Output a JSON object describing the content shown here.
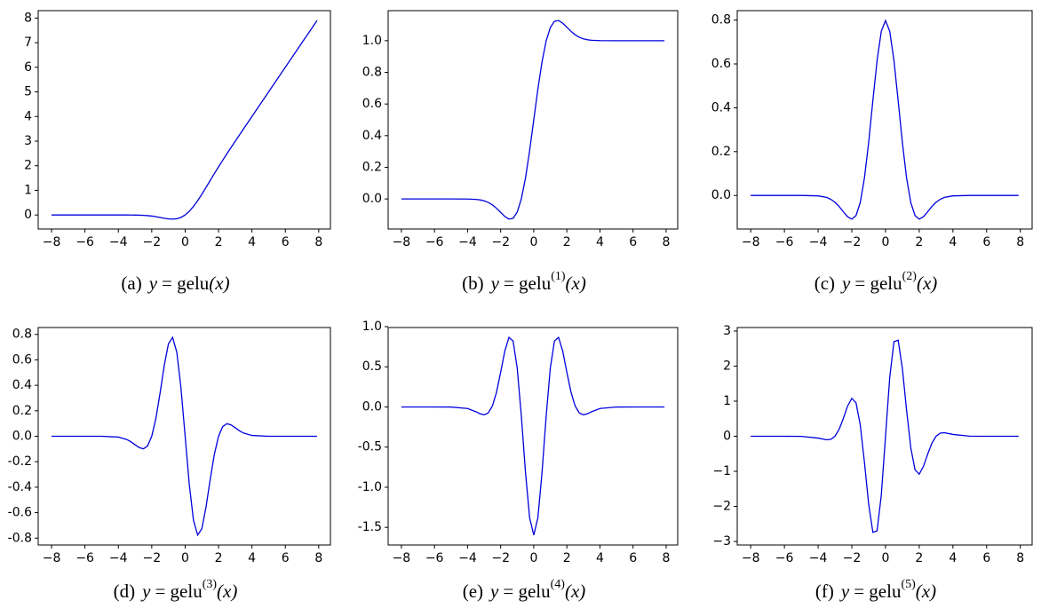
{
  "chart_data": [
    {
      "type": "line",
      "color": "#0000dd",
      "caption": {
        "label": "(a)",
        "var": "y",
        "eq": "= gelu",
        "arg": "(x)"
      },
      "x": [
        -8,
        -7,
        -6,
        -5,
        -4,
        -3.5,
        -3.25,
        -3,
        -2.75,
        -2.5,
        -2.25,
        -2,
        -1.75,
        -1.5,
        -1.25,
        -1,
        -0.75,
        -0.5,
        -0.25,
        0,
        0.25,
        0.5,
        0.75,
        1,
        1.25,
        1.5,
        1.75,
        2,
        2.25,
        2.5,
        2.75,
        3,
        3.25,
        3.5,
        4,
        5,
        6,
        7,
        7.9
      ],
      "values": [
        0,
        0,
        0,
        0,
        -0.0001,
        -0.0008,
        -0.0019,
        -0.0041,
        -0.0082,
        -0.0155,
        -0.0275,
        -0.0455,
        -0.0701,
        -0.1002,
        -0.1321,
        -0.1587,
        -0.17,
        -0.1543,
        -0.1003,
        0,
        0.1497,
        0.3457,
        0.58,
        0.8413,
        1.1179,
        1.3998,
        1.6799,
        1.9545,
        2.2225,
        2.4845,
        2.7418,
        2.996,
        3.2481,
        3.4992,
        3.9999,
        5,
        6,
        7,
        7.9
      ],
      "xlim": [
        -8.8,
        8.7
      ],
      "ylim": [
        -0.57,
        8.3
      ],
      "xticks": [
        {
          "value": -8,
          "label": "−8"
        },
        {
          "value": -6,
          "label": "−6"
        },
        {
          "value": -4,
          "label": "−4"
        },
        {
          "value": -2,
          "label": "−2"
        },
        0,
        2,
        4,
        6,
        8
      ],
      "yticks": [
        0,
        1,
        2,
        3,
        4,
        5,
        6,
        7,
        8
      ]
    },
    {
      "type": "line",
      "color": "#0000dd",
      "caption": {
        "label": "(b)",
        "var": "y",
        "eq": "= gelu",
        "sup": "(1)",
        "arg": "(x)"
      },
      "x": [
        -8,
        -7,
        -6,
        -5,
        -4,
        -3.5,
        -3.25,
        -3,
        -2.75,
        -2.5,
        -2.25,
        -2,
        -1.75,
        -1.5,
        -1.25,
        -1,
        -0.75,
        -0.5,
        -0.25,
        0,
        0.25,
        0.5,
        0.75,
        1,
        1.25,
        1.5,
        1.75,
        2,
        2.25,
        2.5,
        2.75,
        3,
        3.25,
        3.5,
        4,
        5,
        6,
        7,
        7.9
      ],
      "values": [
        0,
        0,
        0,
        0,
        -0.0005,
        -0.0028,
        -0.006,
        -0.0119,
        -0.022,
        -0.0376,
        -0.0592,
        -0.0852,
        -0.1109,
        -0.1275,
        -0.1227,
        -0.0833,
        0.0008,
        0.1325,
        0.3046,
        0.5,
        0.6954,
        0.8675,
        0.9992,
        1.0833,
        1.1227,
        1.1275,
        1.1109,
        1.0852,
        1.0592,
        1.0376,
        1.022,
        1.0119,
        1.006,
        1.0028,
        1.0005,
        1,
        1,
        1,
        1
      ],
      "xlim": [
        -8.8,
        8.7
      ],
      "ylim": [
        -0.19,
        1.19
      ],
      "xticks": [
        {
          "value": -8,
          "label": "−8"
        },
        {
          "value": -6,
          "label": "−6"
        },
        {
          "value": -4,
          "label": "−4"
        },
        {
          "value": -2,
          "label": "−2"
        },
        0,
        2,
        4,
        6,
        8
      ],
      "yticks": [
        {
          "value": 0,
          "label": "0.0"
        },
        0.2,
        0.4,
        0.6,
        0.8,
        {
          "value": 1,
          "label": "1.0"
        }
      ]
    },
    {
      "type": "line",
      "color": "#0000dd",
      "caption": {
        "label": "(c)",
        "var": "y",
        "eq": "= gelu",
        "sup": "(2)",
        "arg": "(x)"
      },
      "x": [
        -8,
        -7,
        -6,
        -5,
        -4,
        -3.5,
        -3.25,
        -3,
        -2.75,
        -2.5,
        -2.25,
        -2,
        -1.75,
        -1.5,
        -1.25,
        -1,
        -0.75,
        -0.5,
        -0.25,
        0,
        0.25,
        0.5,
        0.75,
        1,
        1.25,
        1.5,
        1.75,
        2,
        2.25,
        2.5,
        2.75,
        3,
        3.25,
        3.5,
        4,
        5,
        6,
        7,
        7.9
      ],
      "values": [
        0,
        0,
        0,
        0,
        -0.0019,
        -0.0089,
        -0.0174,
        -0.031,
        -0.0506,
        -0.0745,
        -0.0972,
        -0.108,
        -0.0917,
        -0.0324,
        0.0799,
        0.242,
        0.4329,
        0.6161,
        0.7492,
        0.7979,
        0.7492,
        0.6161,
        0.4329,
        0.242,
        0.0799,
        -0.0324,
        -0.0917,
        -0.108,
        -0.0972,
        -0.0745,
        -0.0506,
        -0.031,
        -0.0174,
        -0.0089,
        -0.0019,
        0,
        0,
        0,
        0
      ],
      "xlim": [
        -8.8,
        8.7
      ],
      "ylim": [
        -0.153,
        0.843
      ],
      "xticks": [
        {
          "value": -8,
          "label": "−8"
        },
        {
          "value": -6,
          "label": "−6"
        },
        {
          "value": -4,
          "label": "−4"
        },
        {
          "value": -2,
          "label": "−2"
        },
        0,
        2,
        4,
        6,
        8
      ],
      "yticks": [
        {
          "value": 0,
          "label": "0.0"
        },
        0.2,
        0.4,
        0.6,
        0.8
      ]
    },
    {
      "type": "line",
      "color": "#0000dd",
      "caption": {
        "label": "(d)",
        "var": "y",
        "eq": "= gelu",
        "sup": "(3)",
        "arg": "(x)"
      },
      "x": [
        -8,
        -7,
        -6,
        -5,
        -4,
        -3.5,
        -3.25,
        -3,
        -2.75,
        -2.5,
        -2.25,
        -2,
        -1.75,
        -1.5,
        -1.25,
        -1,
        -0.75,
        -0.5,
        -0.25,
        0,
        0.25,
        0.5,
        0.75,
        1,
        1.25,
        1.5,
        1.75,
        2,
        2.25,
        2.5,
        2.75,
        3,
        3.25,
        3.5,
        4,
        5,
        6,
        7,
        7.9
      ],
      "values": [
        0,
        0,
        0,
        0,
        -0.0064,
        -0.0251,
        -0.0433,
        -0.0665,
        -0.0891,
        -0.0986,
        -0.0759,
        0,
        0.1416,
        0.34,
        0.5565,
        0.7259,
        0.7764,
        0.6601,
        0.3806,
        0,
        -0.3806,
        -0.6601,
        -0.7764,
        -0.7259,
        -0.5565,
        -0.34,
        -0.1416,
        0,
        0.0759,
        0.0986,
        0.0891,
        0.0665,
        0.0433,
        0.0251,
        0.0064,
        0,
        0,
        0,
        0
      ],
      "xlim": [
        -8.8,
        8.7
      ],
      "ylim": [
        -0.854,
        0.854
      ],
      "xticks": [
        {
          "value": -8,
          "label": "−8"
        },
        {
          "value": -6,
          "label": "−6"
        },
        {
          "value": -4,
          "label": "−4"
        },
        {
          "value": -2,
          "label": "−2"
        },
        0,
        2,
        4,
        6,
        8
      ],
      "yticks": [
        -0.8,
        -0.6,
        -0.4,
        -0.2,
        {
          "value": 0,
          "label": "0.0"
        },
        0.2,
        0.4,
        0.6,
        0.8
      ]
    },
    {
      "type": "line",
      "color": "#0000dd",
      "caption": {
        "label": "(e)",
        "var": "y",
        "eq": "= gelu",
        "sup": "(4)",
        "arg": "(x)"
      },
      "x": [
        -8,
        -7,
        -6,
        -5,
        -4,
        -3.5,
        -3.25,
        -3,
        -2.75,
        -2.5,
        -2.25,
        -2,
        -1.75,
        -1.5,
        -1.25,
        -1,
        -0.75,
        -0.5,
        -0.25,
        0,
        0.25,
        0.5,
        0.75,
        1,
        1.25,
        1.5,
        1.75,
        2,
        2.25,
        2.5,
        2.75,
        3,
        3.25,
        3.5,
        4,
        5,
        6,
        7,
        7.9
      ],
      "values": [
        0,
        0,
        0,
        -0.0007,
        -0.0198,
        -0.0594,
        -0.0845,
        -0.0975,
        -0.075,
        0.0121,
        0.1844,
        0.4319,
        0.6953,
        0.8662,
        0.8212,
        0.4839,
        -0.1141,
        -0.8142,
        -1.379,
        -1.5958,
        -1.379,
        -0.8142,
        -0.1141,
        0.4839,
        0.8212,
        0.8662,
        0.6953,
        0.4319,
        0.1844,
        0.0121,
        -0.075,
        -0.0975,
        -0.0845,
        -0.0594,
        -0.0198,
        -0.0007,
        0,
        0,
        0
      ],
      "xlim": [
        -8.8,
        8.7
      ],
      "ylim": [
        -1.719,
        0.989
      ],
      "xticks": [
        {
          "value": -8,
          "label": "−8"
        },
        {
          "value": -6,
          "label": "−6"
        },
        {
          "value": -4,
          "label": "−4"
        },
        {
          "value": -2,
          "label": "−2"
        },
        0,
        2,
        4,
        6,
        8
      ],
      "yticks": [
        -1.5,
        {
          "value": -1,
          "label": "-1.0"
        },
        -0.5,
        {
          "value": 0,
          "label": "0.0"
        },
        0.5,
        {
          "value": 1,
          "label": "1.0"
        }
      ]
    },
    {
      "type": "line",
      "color": "#0000dd",
      "caption": {
        "label": "(f)",
        "var": "y",
        "eq": "= gelu",
        "sup": "(5)",
        "arg": "(x)"
      },
      "x": [
        -8,
        -7,
        -6,
        -5,
        -4,
        -3.5,
        -3.25,
        -3,
        -2.75,
        -2.5,
        -2.25,
        -2,
        -1.75,
        -1.5,
        -1.25,
        -1,
        -0.75,
        -0.5,
        -0.25,
        0,
        0.25,
        0.5,
        0.75,
        1,
        1.25,
        1.5,
        1.75,
        2,
        2.25,
        2.5,
        2.75,
        3,
        3.25,
        3.5,
        4,
        5,
        6,
        7,
        7.9
      ],
      "values": [
        0,
        0,
        0,
        -0.0027,
        -0.0525,
        -0.1014,
        -0.0883,
        0,
        0.1999,
        0.5122,
        0.8613,
        1.0798,
        0.9526,
        0.3278,
        -0.7429,
        -1.9358,
        -2.7394,
        -2.6956,
        -1.6739,
        0,
        1.6739,
        2.6956,
        2.7394,
        1.9358,
        0.7429,
        -0.3278,
        -0.9526,
        -1.0798,
        -0.8613,
        -0.5122,
        -0.1999,
        0,
        0.0883,
        0.1014,
        0.0525,
        0.0027,
        0,
        0,
        0
      ],
      "xlim": [
        -8.8,
        8.7
      ],
      "ylim": [
        -3.1,
        3.1
      ],
      "xticks": [
        {
          "value": -8,
          "label": "−8"
        },
        {
          "value": -6,
          "label": "−6"
        },
        {
          "value": -4,
          "label": "−4"
        },
        {
          "value": -2,
          "label": "−2"
        },
        0,
        2,
        4,
        6,
        8
      ],
      "yticks": [
        {
          "value": -3,
          "label": "−3"
        },
        {
          "value": -2,
          "label": "−2"
        },
        {
          "value": -1,
          "label": "−1"
        },
        0,
        1,
        2,
        3
      ]
    }
  ]
}
